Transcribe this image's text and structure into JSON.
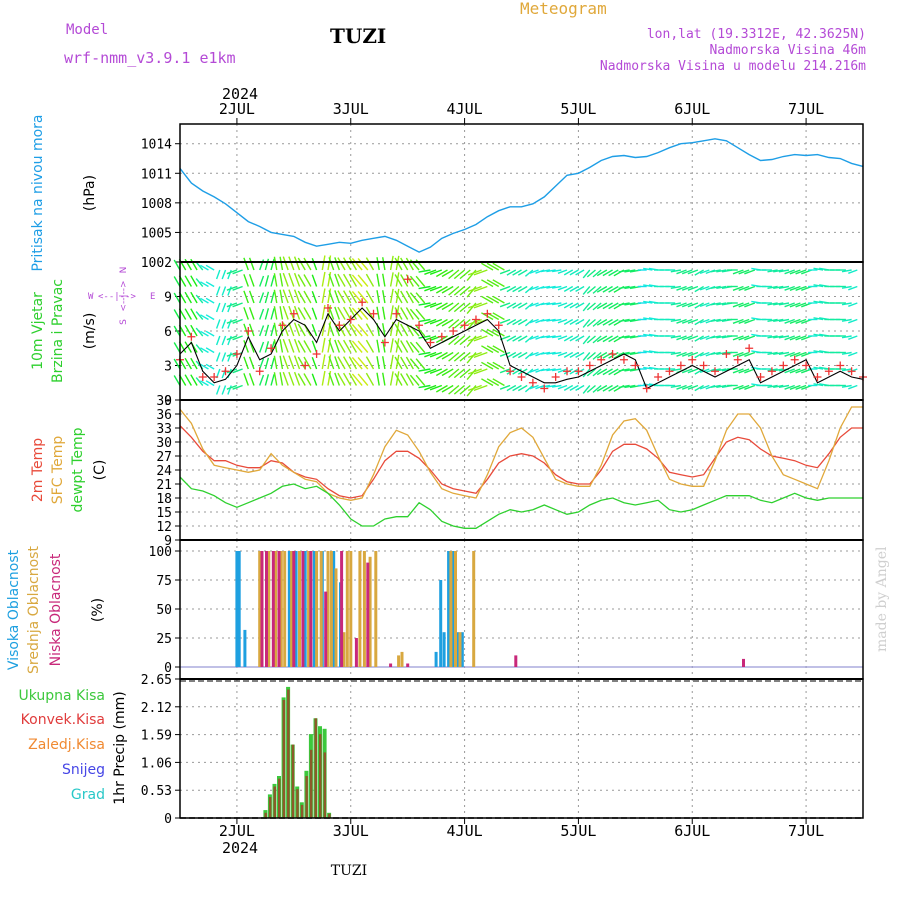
{
  "header": {
    "model_label": "Model",
    "model_name": "wrf-nmm_v3.9.1 e1km",
    "station": "TUZI",
    "meteogram": "Meteogram",
    "lonlat": "lon,lat (19.3312E, 42.3625N)",
    "altitude": "Nadmorska Visina 46m",
    "model_altitude": "Nadmorska Visina u modelu 214.216m",
    "footer_station": "TUZI",
    "credit": "made by Angel"
  },
  "colors": {
    "pressure": "#1e9ee6",
    "t2m": "#e84a3a",
    "sfc": "#e0a83a",
    "dew": "#2ed02e",
    "cloud_high": "#1ea0e0",
    "cloud_mid": "#d8a840",
    "cloud_low": "#c8287a",
    "precip_total": "#3cc83c",
    "precip_conv": "#e03c3c",
    "precip_frozen": "#f08a32",
    "snow": "#4646e6",
    "grad": "#28c8c8",
    "wind_speed": "#000000",
    "gust": "#ee3333",
    "wind_label": "#b44ad6",
    "credit": "#cfcfcf"
  },
  "chart_data": [
    {
      "type": "line",
      "name": "pressure",
      "ylabel_lines": [
        "Pritisak na nivou mora",
        "(hPa)"
      ],
      "ylim": [
        1002,
        1016
      ],
      "yticks": [
        1002,
        1005,
        1008,
        1011,
        1014
      ],
      "x_days": [
        1.5,
        1.6,
        1.7,
        1.8,
        1.9,
        2.0,
        2.1,
        2.2,
        2.3,
        2.4,
        2.5,
        2.6,
        2.7,
        2.8,
        2.9,
        3.0,
        3.1,
        3.2,
        3.3,
        3.4,
        3.5,
        3.6,
        3.7,
        3.8,
        3.9,
        4.0,
        4.1,
        4.2,
        4.3,
        4.4,
        4.5,
        4.6,
        4.7,
        4.8,
        4.9,
        5.0,
        5.1,
        5.2,
        5.3,
        5.4,
        5.5,
        5.6,
        5.7,
        5.8,
        5.9,
        6.0,
        6.1,
        6.2,
        6.3,
        6.4,
        6.5,
        6.6,
        6.7,
        6.8,
        6.9,
        7.0,
        7.1,
        7.2,
        7.3,
        7.4,
        7.5
      ],
      "values": [
        1011.5,
        1010.0,
        1009.2,
        1008.6,
        1007.9,
        1007.0,
        1006.1,
        1005.6,
        1005.0,
        1004.8,
        1004.6,
        1004.0,
        1003.6,
        1003.8,
        1004.0,
        1003.9,
        1004.2,
        1004.4,
        1004.6,
        1004.2,
        1003.6,
        1003.0,
        1003.5,
        1004.4,
        1004.9,
        1005.3,
        1005.8,
        1006.6,
        1007.2,
        1007.6,
        1007.6,
        1007.9,
        1008.6,
        1009.7,
        1010.8,
        1011.0,
        1011.6,
        1012.3,
        1012.7,
        1012.8,
        1012.6,
        1012.7,
        1013.1,
        1013.6,
        1014.0,
        1014.1,
        1014.3,
        1014.5,
        1014.3,
        1013.6,
        1012.9,
        1012.3,
        1012.4,
        1012.7,
        1012.9,
        1012.8,
        1012.9,
        1012.6,
        1012.5,
        1012.0,
        1011.7
      ]
    },
    {
      "type": "line",
      "name": "wind",
      "ylabel_lines": [
        "10m Vjetar",
        "Brzina i Pravac",
        "(m/s)"
      ],
      "compass_labels": [
        "W",
        "<--|-->",
        "E",
        "N",
        "<--|-->",
        "S"
      ],
      "ylim": [
        0,
        12
      ],
      "yticks": [
        0,
        3,
        6,
        9
      ],
      "x_days": [
        1.5,
        1.6,
        1.7,
        1.8,
        1.9,
        2.0,
        2.1,
        2.2,
        2.3,
        2.4,
        2.5,
        2.6,
        2.7,
        2.8,
        2.9,
        3.0,
        3.1,
        3.2,
        3.3,
        3.4,
        3.5,
        3.6,
        3.7,
        3.8,
        3.9,
        4.0,
        4.1,
        4.2,
        4.3,
        4.4,
        4.5,
        4.6,
        4.7,
        4.8,
        4.9,
        5.0,
        5.1,
        5.2,
        5.3,
        5.4,
        5.5,
        5.6,
        5.7,
        5.8,
        5.9,
        6.0,
        6.1,
        6.2,
        6.3,
        6.4,
        6.5,
        6.6,
        6.7,
        6.8,
        6.9,
        7.0,
        7.1,
        7.2,
        7.3,
        7.4,
        7.5
      ],
      "speed": [
        4.0,
        5.0,
        2.5,
        1.5,
        1.8,
        3.0,
        5.5,
        3.5,
        4.0,
        6.0,
        7.0,
        6.5,
        5.0,
        7.5,
        6.0,
        7.0,
        8.0,
        7.0,
        5.5,
        7.0,
        6.5,
        6.0,
        4.5,
        5.0,
        5.5,
        6.0,
        6.5,
        7.0,
        6.0,
        3.0,
        2.5,
        2.0,
        1.5,
        1.5,
        1.8,
        2.0,
        2.5,
        3.0,
        3.5,
        4.0,
        3.5,
        1.0,
        1.5,
        2.0,
        2.5,
        3.0,
        2.5,
        2.0,
        2.5,
        3.0,
        3.5,
        1.5,
        2.0,
        2.5,
        3.0,
        3.5,
        1.5,
        2.0,
        2.5,
        2.0,
        1.8
      ],
      "gust": [
        3.5,
        5.5,
        2.0,
        2.0,
        2.5,
        4.0,
        6.0,
        2.5,
        4.5,
        6.5,
        7.5,
        3.0,
        4.0,
        8.0,
        6.5,
        7.0,
        8.5,
        7.5,
        5.0,
        7.5,
        10.5,
        6.5,
        5.0,
        5.5,
        6.0,
        6.5,
        7.0,
        7.5,
        6.5,
        2.5,
        2.0,
        1.5,
        1.0,
        2.0,
        2.5,
        2.5,
        3.0,
        3.5,
        4.0,
        3.5,
        3.0,
        1.0,
        2.0,
        2.5,
        3.0,
        3.5,
        3.0,
        2.5,
        4.0,
        3.5,
        4.5,
        2.0,
        2.5,
        3.0,
        3.5,
        3.0,
        2.0,
        2.5,
        3.0,
        2.5,
        2.0
      ],
      "direction_deg": [
        330,
        330,
        320,
        300,
        200,
        250,
        340,
        20,
        15,
        350,
        340,
        330,
        340,
        10,
        340,
        330,
        320,
        330,
        350,
        10,
        330,
        320,
        260,
        250,
        240,
        230,
        220,
        250,
        300,
        250,
        240,
        230,
        250,
        260,
        250,
        240,
        220,
        230,
        240,
        240,
        260,
        270,
        280,
        270,
        260,
        250,
        240,
        250,
        260,
        270,
        250,
        280,
        270,
        260,
        250,
        250,
        270,
        280,
        270,
        260,
        250
      ]
    },
    {
      "type": "line",
      "name": "temperature",
      "ylabel_lines": [
        "2m Temp",
        "SFC Temp",
        "dewpt Temp",
        "(C)"
      ],
      "ylim": [
        9,
        39
      ],
      "yticks": [
        9,
        12,
        15,
        18,
        21,
        24,
        27,
        30,
        33,
        36,
        39
      ],
      "x_days": [
        1.5,
        1.6,
        1.7,
        1.8,
        1.9,
        2.0,
        2.1,
        2.2,
        2.3,
        2.4,
        2.5,
        2.6,
        2.7,
        2.8,
        2.9,
        3.0,
        3.1,
        3.2,
        3.3,
        3.4,
        3.5,
        3.6,
        3.7,
        3.8,
        3.9,
        4.0,
        4.1,
        4.2,
        4.3,
        4.4,
        4.5,
        4.6,
        4.7,
        4.8,
        4.9,
        5.0,
        5.1,
        5.2,
        5.3,
        5.4,
        5.5,
        5.6,
        5.7,
        5.8,
        5.9,
        6.0,
        6.1,
        6.2,
        6.3,
        6.4,
        6.5,
        6.6,
        6.7,
        6.8,
        6.9,
        7.0,
        7.1,
        7.2,
        7.3,
        7.4,
        7.5
      ],
      "series": [
        {
          "name": "2m Temp",
          "values": [
            33.5,
            31.0,
            28.0,
            26.0,
            26.0,
            25.0,
            24.5,
            24.5,
            26.0,
            25.5,
            23.5,
            22.5,
            22.0,
            20.0,
            18.5,
            18.0,
            18.5,
            22.0,
            26.0,
            28.0,
            28.0,
            26.5,
            24.0,
            21.0,
            20.0,
            19.5,
            19.0,
            22.0,
            25.5,
            27.0,
            27.5,
            27.0,
            25.5,
            23.0,
            21.5,
            21.0,
            21.0,
            24.0,
            28.0,
            29.5,
            29.5,
            28.5,
            26.5,
            23.5,
            23.0,
            22.5,
            23.0,
            26.5,
            30.0,
            31.0,
            30.5,
            28.5,
            27.0,
            26.5,
            26.0,
            25.0,
            24.5,
            27.5,
            31.0,
            33.0,
            33.0
          ]
        },
        {
          "name": "SFC Temp",
          "values": [
            37.0,
            34.0,
            28.5,
            25.0,
            24.5,
            24.0,
            23.5,
            24.0,
            27.5,
            25.0,
            23.5,
            22.0,
            21.5,
            19.0,
            18.0,
            17.5,
            18.0,
            23.0,
            29.0,
            32.5,
            31.5,
            28.0,
            23.5,
            20.0,
            19.0,
            18.5,
            18.0,
            23.0,
            29.0,
            32.0,
            33.0,
            31.0,
            26.5,
            22.0,
            21.0,
            20.5,
            20.5,
            25.0,
            31.5,
            34.5,
            35.0,
            32.5,
            27.0,
            22.0,
            21.0,
            20.5,
            20.5,
            26.0,
            32.5,
            36.0,
            36.0,
            33.0,
            27.0,
            23.0,
            22.0,
            21.0,
            20.0,
            26.0,
            33.0,
            37.5,
            37.5
          ]
        },
        {
          "name": "dewpt Temp",
          "values": [
            22.5,
            20.0,
            19.5,
            18.5,
            17.0,
            16.0,
            17.0,
            18.0,
            19.0,
            20.5,
            21.0,
            20.0,
            20.5,
            19.0,
            16.5,
            13.5,
            12.0,
            12.0,
            13.5,
            14.0,
            14.0,
            17.0,
            15.5,
            13.0,
            12.0,
            11.5,
            11.5,
            13.0,
            14.5,
            15.5,
            15.0,
            15.5,
            16.5,
            15.5,
            14.5,
            15.0,
            16.5,
            17.5,
            18.0,
            17.0,
            16.5,
            17.0,
            17.5,
            15.5,
            15.0,
            15.5,
            16.5,
            17.5,
            18.5,
            18.5,
            18.5,
            17.5,
            17.0,
            18.0,
            19.0,
            18.0,
            17.5,
            18.0,
            18.0,
            18.0,
            18.0
          ]
        }
      ]
    },
    {
      "type": "bar",
      "name": "clouds",
      "ylabel_lines": [
        "Visoka Oblacnost",
        "Srednja Oblacnost",
        "Niska Oblacnost",
        "(%)"
      ],
      "ylim": [
        0,
        100
      ],
      "yticks": [
        0,
        25,
        50,
        75,
        100
      ],
      "series": [
        {
          "name": "Visoka Oblacnost",
          "x_days": [
            2.0,
            2.02,
            2.07,
            2.46,
            2.52,
            2.6,
            2.68,
            2.75,
            2.85,
            2.91,
            3.75,
            3.79,
            3.82,
            3.86,
            3.9,
            3.94,
            3.98
          ],
          "values": [
            100,
            100,
            32,
            100,
            100,
            100,
            100,
            100,
            100,
            73,
            13,
            75,
            30,
            100,
            100,
            30,
            30
          ]
        },
        {
          "name": "Srednja Oblacnost",
          "x_days": [
            2.2,
            2.28,
            2.34,
            2.39,
            2.42,
            2.48,
            2.55,
            2.63,
            2.7,
            2.74,
            2.8,
            2.83,
            2.87,
            2.94,
            2.97,
            3.0,
            3.08,
            3.12,
            3.17,
            3.22,
            3.42,
            3.45,
            3.88,
            3.92,
            3.96,
            4.08
          ],
          "values": [
            100,
            100,
            100,
            100,
            100,
            100,
            100,
            100,
            100,
            100,
            100,
            100,
            85,
            30,
            100,
            100,
            100,
            100,
            95,
            100,
            10,
            13,
            100,
            100,
            30,
            100
          ]
        },
        {
          "name": "Niska Oblacnost",
          "x_days": [
            2.22,
            2.26,
            2.32,
            2.37,
            2.5,
            2.58,
            2.65,
            2.78,
            2.92,
            3.05,
            3.15,
            3.35,
            3.5,
            4.45,
            6.45
          ],
          "values": [
            100,
            100,
            100,
            100,
            100,
            100,
            100,
            65,
            100,
            25,
            90,
            3,
            3,
            10,
            7
          ]
        }
      ]
    },
    {
      "type": "bar",
      "name": "precipitation",
      "ylabel_lines": [
        "1hr Precip (mm)"
      ],
      "legend": [
        "Ukupna Kisa",
        "Konvek.Kisa",
        "Zaledj.Kisa",
        "Snijeg",
        "Grad"
      ],
      "ylim": [
        0,
        2.65
      ],
      "yticks": [
        0,
        0.53,
        1.06,
        1.59,
        2.12,
        2.65
      ],
      "x_days": [
        2.25,
        2.29,
        2.33,
        2.37,
        2.41,
        2.45,
        2.49,
        2.53,
        2.57,
        2.61,
        2.65,
        2.69,
        2.73,
        2.77,
        2.81,
        2.85
      ],
      "series": [
        {
          "name": "Ukupna Kisa",
          "values": [
            0.15,
            0.45,
            0.65,
            0.8,
            2.3,
            2.5,
            1.4,
            0.6,
            0.3,
            0.9,
            1.6,
            1.9,
            1.75,
            1.7,
            0.1,
            0.0
          ]
        },
        {
          "name": "Konvek.Kisa",
          "values": [
            0.1,
            0.4,
            0.6,
            0.75,
            2.25,
            2.45,
            1.4,
            0.55,
            0.25,
            0.8,
            1.3,
            1.9,
            1.6,
            1.25,
            0.08,
            0.0
          ]
        }
      ]
    }
  ],
  "x_axis": {
    "ticks": [
      {
        "day": 2,
        "label": "2JUL"
      },
      {
        "day": 3,
        "label": "3JUL"
      },
      {
        "day": 4,
        "label": "4JUL"
      },
      {
        "day": 5,
        "label": "5JUL"
      },
      {
        "day": 6,
        "label": "6JUL"
      },
      {
        "day": 7,
        "label": "7JUL"
      }
    ],
    "year": "2024",
    "range_days": [
      1.5,
      7.5
    ]
  }
}
